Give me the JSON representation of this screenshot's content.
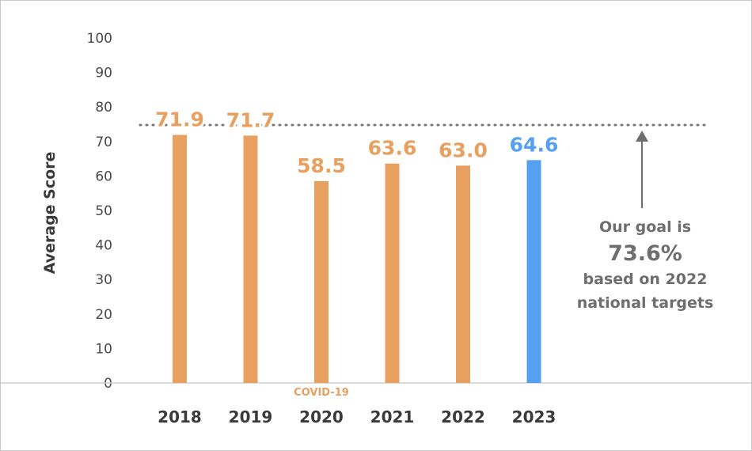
{
  "chart_data": {
    "type": "bar",
    "categories": [
      "2018",
      "2019",
      "2020",
      "2021",
      "2022",
      "2023"
    ],
    "values": [
      71.9,
      71.7,
      58.5,
      63.6,
      63.0,
      64.6
    ],
    "value_labels": [
      "71.9",
      "71.7",
      "58.5",
      "63.6",
      "63.0",
      "64.6"
    ],
    "ylabel": "Average Score",
    "xlabel": "",
    "ylim": [
      0,
      100
    ],
    "yticks": [
      0,
      10,
      20,
      30,
      40,
      50,
      60,
      70,
      80,
      90,
      100
    ],
    "grid": false,
    "bar_colors": [
      "#E8A060",
      "#E8A060",
      "#E8A060",
      "#E8A060",
      "#E8A060",
      "#55A0F0"
    ],
    "goal_line": {
      "value": 73.6,
      "color": "#777777",
      "style": "dotted"
    },
    "annotations": {
      "covid": "COVID-19",
      "goal_line1": "Our goal is",
      "goal_value": "73.6%",
      "goal_line2": "based on 2022",
      "goal_line3": "national targets"
    }
  }
}
